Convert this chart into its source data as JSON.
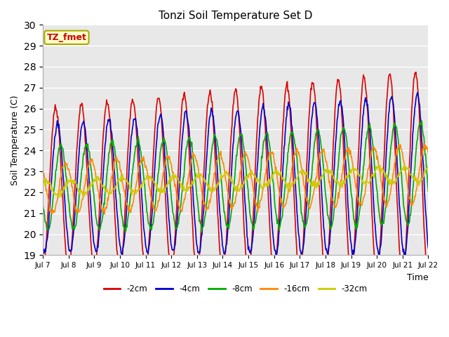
{
  "title": "Tonzi Soil Temperature Set D",
  "ylabel": "Soil Temperature (C)",
  "xlabel": "Time",
  "ylim": [
    19.0,
    30.0
  ],
  "yticks": [
    19.0,
    20.0,
    21.0,
    22.0,
    23.0,
    24.0,
    25.0,
    26.0,
    27.0,
    28.0,
    29.0,
    30.0
  ],
  "label_box_text": "TZ_fmet",
  "label_box_color": "#ffffcc",
  "label_box_edge": "#aaaa00",
  "label_text_color": "#cc0000",
  "bg_color": "#ffffff",
  "plot_bg_color": "#e8e8e8",
  "grid_color": "#ffffff",
  "lines": [
    {
      "label": "-2cm",
      "color": "#dd0000",
      "lw": 1.2
    },
    {
      "label": "-4cm",
      "color": "#0000cc",
      "lw": 1.2
    },
    {
      "label": "-8cm",
      "color": "#00aa00",
      "lw": 1.2
    },
    {
      "label": "-16cm",
      "color": "#ff8800",
      "lw": 1.2
    },
    {
      "label": "-32cm",
      "color": "#cccc00",
      "lw": 1.2
    }
  ],
  "xtick_labels": [
    "Jul 7",
    "Jul 8",
    "Jul 9",
    "Jul 10",
    "Jul 11",
    "Jul 12",
    "Jul 13",
    "Jul 14",
    "Jul 15",
    "Jul 16",
    "Jul 17",
    "Jul 18",
    "Jul 19",
    "Jul 20",
    "Jul 21",
    "Jul 22"
  ],
  "n_days": 15.0,
  "base_temp": 22.2,
  "trend_slope": 0.045,
  "amplitudes": [
    3.8,
    3.0,
    2.0,
    1.2,
    0.35
  ],
  "phase_shifts": [
    0.0,
    0.07,
    0.2,
    0.38,
    0.6
  ],
  "amp_growth": [
    0.3,
    0.28,
    0.22,
    0.15,
    0.05
  ]
}
